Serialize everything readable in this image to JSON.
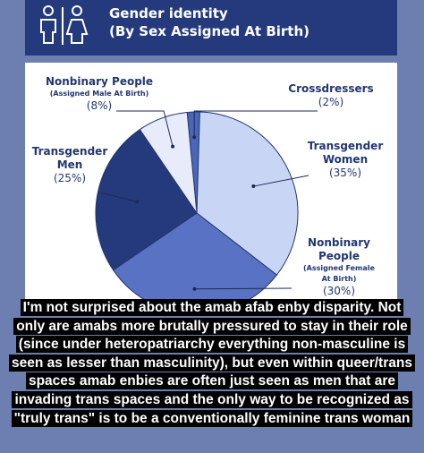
{
  "header": {
    "title_line1": "Gender identity",
    "title_line2": "(By Sex Assigned At Birth)",
    "icon": "restroom-male-female-icon"
  },
  "chart_data": {
    "type": "pie",
    "title": "Gender identity (By Sex Assigned At Birth)",
    "slices": [
      {
        "name": "Crossdressers",
        "value": 2,
        "label": "(2%)",
        "color": "#4a66b8"
      },
      {
        "name": "Transgender Women",
        "value": 35,
        "label": "(35%)",
        "color": "#c9d5f4"
      },
      {
        "name": "Nonbinary People (Assigned Female At Birth)",
        "value": 30,
        "label": "(30%)",
        "color": "#5972c4"
      },
      {
        "name": "Transgender Men",
        "value": 25,
        "label": "(25%)",
        "color": "#243a7c"
      },
      {
        "name": "Nonbinary People (Assigned Male At Birth)",
        "value": 8,
        "label": "(8%)",
        "color": "#e8ecfa"
      }
    ]
  },
  "labels": {
    "nb_amab": {
      "line1": "Nonbinary People",
      "line2": "(Assigned Male At Birth)",
      "pct": "(8%)"
    },
    "crossdressers": {
      "line1": "Crossdressers",
      "pct": "(2%)"
    },
    "trans_women": {
      "line1": "Transgender",
      "line2": "Women",
      "pct": "(35%)"
    },
    "trans_men": {
      "line1": "Transgender",
      "line2": "Men",
      "pct": "(25%)"
    },
    "nb_afab": {
      "line1": "Nonbinary",
      "line2": "People",
      "line3": "(Assigned Female",
      "line4": "At Birth)",
      "pct": "(30%)"
    }
  },
  "caption": "I'm not surprised about the amab afab enby disparity. Not only are amabs more brutally pressured to stay in their role (since under heteropatriarchy everything non-masculine is seen as lesser than masculinity), but even within queer/trans spaces amab enbies are often just seen as men that are invading trans spaces and the only way to be recognized as \"truly trans\" is to be a conventionally feminine trans woman"
}
